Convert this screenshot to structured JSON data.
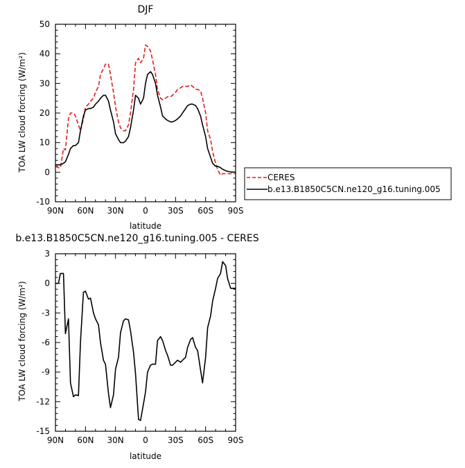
{
  "chart_data": [
    {
      "type": "line",
      "title": "DJF",
      "xlabel": "latitude",
      "ylabel": "TOA LW cloud forcing (W/m²)",
      "x_ticks": [
        "90N",
        "60N",
        "30N",
        "0",
        "30S",
        "60S",
        "90S"
      ],
      "y_ticks": [
        "-10",
        "0",
        "10",
        "20",
        "30",
        "40",
        "50"
      ],
      "xlim": [
        90,
        -90
      ],
      "ylim": [
        -10,
        50
      ],
      "legend": "right-of-plot, boxed",
      "series": [
        {
          "name": "CERES",
          "color": "#e41a1c",
          "style": "dashed",
          "x": [
            90,
            87,
            85,
            82,
            80,
            77,
            75,
            72,
            70,
            67,
            65,
            62,
            60,
            57,
            55,
            52,
            50,
            47,
            45,
            42,
            40,
            37,
            35,
            32,
            30,
            27,
            25,
            22,
            20,
            17,
            15,
            12,
            10,
            7,
            5,
            2,
            0,
            -2,
            -5,
            -7,
            -10,
            -12,
            -15,
            -17,
            -20,
            -22,
            -25,
            -27,
            -30,
            -32,
            -35,
            -37,
            -40,
            -42,
            -45,
            -47,
            -50,
            -52,
            -55,
            -57,
            -60,
            -62,
            -65,
            -67,
            -70,
            -72,
            -75,
            -77,
            -80,
            -82,
            -85,
            -87,
            -90
          ],
          "y": [
            2,
            1.5,
            1.5,
            8,
            7.5,
            18,
            20,
            20,
            19,
            16,
            14,
            18,
            22,
            23,
            24,
            25,
            27,
            29,
            33,
            35,
            36.5,
            36.5,
            33,
            27,
            22,
            17,
            15,
            14,
            14,
            16,
            20,
            28,
            37,
            38.5,
            37,
            38.5,
            43,
            42.5,
            41,
            38,
            33,
            28,
            25,
            24.5,
            25,
            25.5,
            25.5,
            26,
            27,
            28,
            28.5,
            29,
            29,
            29,
            29.5,
            29,
            28,
            28,
            27.5,
            25,
            20,
            14,
            11,
            7,
            3,
            1,
            -1,
            -0.5,
            -0.5,
            -0.5,
            -0.5,
            -0.5,
            -0.5
          ]
        },
        {
          "name": "b.e13.B1850C5CN.ne120_g16.tuning.005",
          "color": "#000000",
          "style": "solid",
          "x": [
            90,
            87,
            85,
            82,
            80,
            77,
            75,
            72,
            70,
            67,
            65,
            62,
            60,
            57,
            55,
            52,
            50,
            47,
            45,
            42,
            40,
            37,
            35,
            32,
            30,
            27,
            25,
            22,
            20,
            17,
            15,
            12,
            10,
            7,
            5,
            2,
            0,
            -2,
            -5,
            -7,
            -10,
            -12,
            -15,
            -17,
            -20,
            -22,
            -25,
            -27,
            -30,
            -32,
            -35,
            -37,
            -40,
            -42,
            -45,
            -47,
            -50,
            -52,
            -55,
            -57,
            -60,
            -62,
            -65,
            -67,
            -70,
            -72,
            -75,
            -77,
            -80,
            -82,
            -85,
            -87,
            -90
          ],
          "y": [
            2.5,
            2.5,
            2.5,
            3,
            3.5,
            6,
            8,
            9,
            9,
            10,
            14,
            19,
            21,
            21.5,
            21.5,
            22,
            23,
            24,
            25,
            26,
            26,
            24,
            21,
            17,
            13,
            11,
            10,
            10,
            10.5,
            12,
            15,
            21,
            26,
            25,
            23,
            25,
            30,
            33,
            34,
            33,
            30,
            26,
            22,
            19,
            18,
            17.5,
            17,
            17,
            17.5,
            18,
            19,
            20,
            21.5,
            22.5,
            23,
            23,
            22.5,
            21.5,
            19,
            16,
            12,
            8,
            5,
            3,
            2,
            2,
            1.5,
            1,
            0.5,
            0.3,
            0.1,
            0,
            0
          ]
        }
      ]
    },
    {
      "type": "line",
      "title": "b.e13.B1850C5CN.ne120_g16.tuning.005 - CERES",
      "xlabel": "latitude",
      "ylabel": "TOA LW cloud forcing (W/m²)",
      "x_ticks": [
        "90N",
        "60N",
        "30N",
        "0",
        "30S",
        "60S",
        "90S"
      ],
      "y_ticks": [
        "-15",
        "-12",
        "-9",
        "-6",
        "-3",
        "0",
        "3"
      ],
      "xlim": [
        90,
        -90
      ],
      "ylim": [
        -15,
        3
      ],
      "series": [
        {
          "color": "#000000",
          "style": "solid",
          "x": [
            90,
            87,
            85,
            82,
            80,
            77,
            75,
            72,
            70,
            67,
            65,
            62,
            60,
            57,
            55,
            52,
            50,
            47,
            45,
            42,
            40,
            37,
            35,
            32,
            30,
            27,
            25,
            22,
            20,
            17,
            15,
            12,
            10,
            7,
            5,
            2,
            0,
            -2,
            -5,
            -7,
            -10,
            -12,
            -15,
            -17,
            -20,
            -22,
            -25,
            -27,
            -30,
            -32,
            -35,
            -37,
            -40,
            -42,
            -45,
            -47,
            -50,
            -52,
            -55,
            -57,
            -60,
            -62,
            -65,
            -67,
            -70,
            -72,
            -75,
            -77,
            -80,
            -82,
            -85,
            -87,
            -90
          ],
          "y": [
            0,
            0,
            1,
            1,
            -5.1,
            -3.6,
            -10.1,
            -11.5,
            -11.3,
            -11.4,
            -6,
            -0.9,
            -0.8,
            -1.6,
            -1.5,
            -3,
            -3.6,
            -4.2,
            -6,
            -7.8,
            -8.2,
            -11.2,
            -12.6,
            -11.3,
            -8.7,
            -7.5,
            -5,
            -3.8,
            -3.6,
            -3.7,
            -4.8,
            -7,
            -9.2,
            -13.8,
            -13.9,
            -12.2,
            -11,
            -9,
            -8.3,
            -8.2,
            -8.2,
            -5.8,
            -5.4,
            -5.8,
            -6.8,
            -7.3,
            -8.3,
            -8.3,
            -8,
            -7.8,
            -8,
            -7.8,
            -7.5,
            -6.5,
            -5.7,
            -5.5,
            -6.5,
            -6.8,
            -8.8,
            -10.1,
            -7.5,
            -4.5,
            -3.3,
            -1.8,
            -0.5,
            0.5,
            1,
            2.2,
            1.8,
            0.5,
            -0.5,
            -0.5,
            -0.5
          ]
        }
      ]
    }
  ]
}
